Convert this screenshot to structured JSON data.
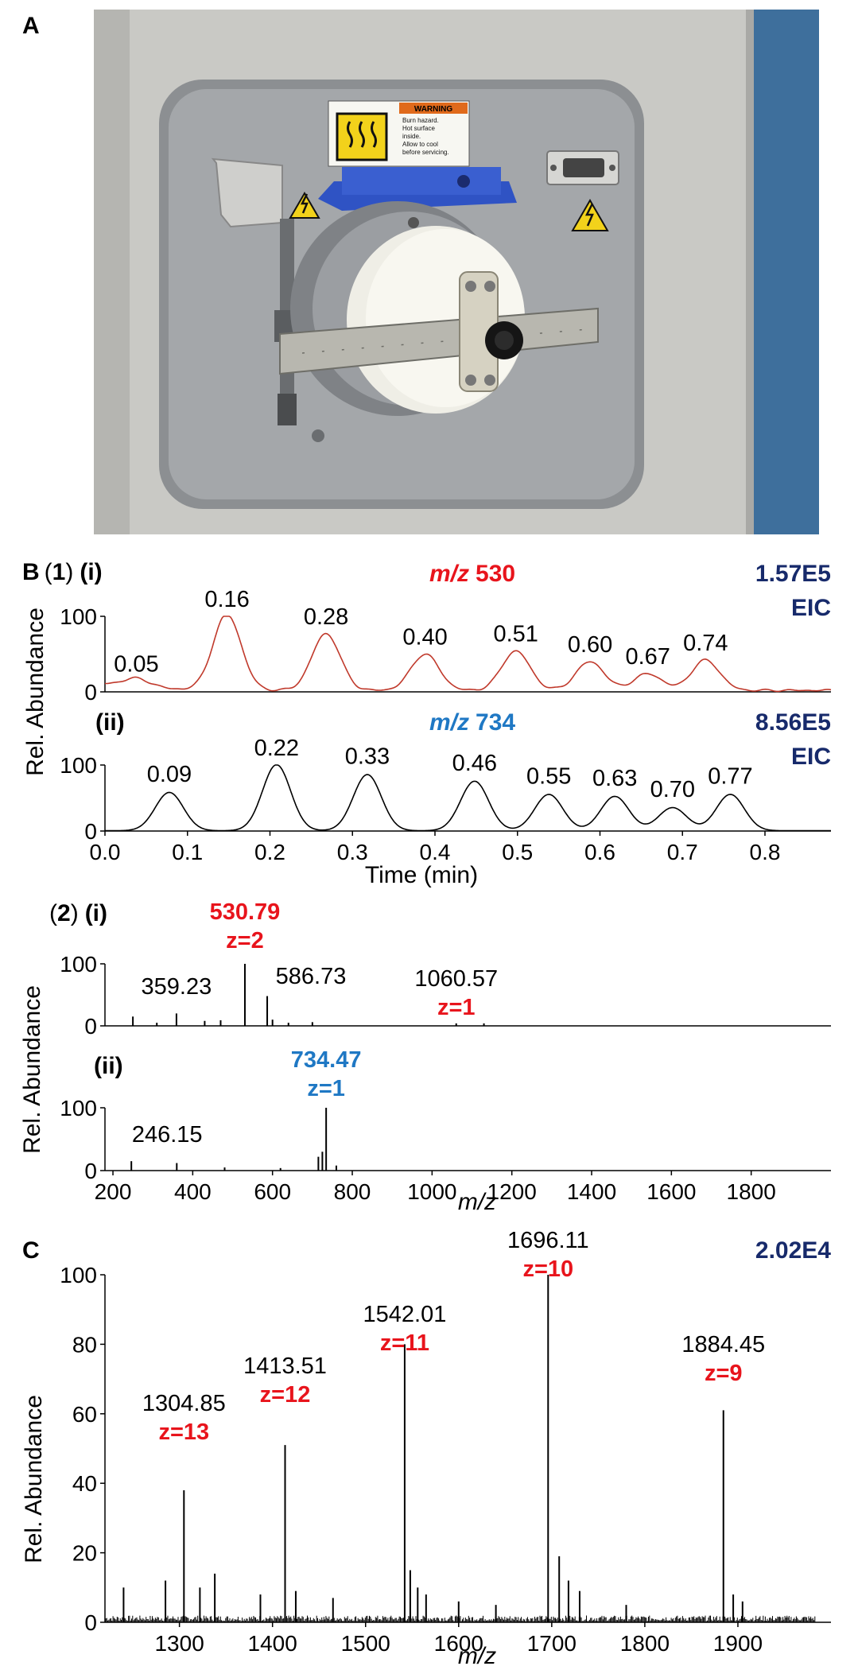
{
  "panels": {
    "A": "A",
    "B": "B",
    "C": "C"
  },
  "photo": {
    "warning_title": "WARNING",
    "warning_text": [
      "Burn hazard.",
      "Hot surface",
      "inside.",
      "Allow to cool",
      "before servicing."
    ]
  },
  "labels": {
    "rel_abundance": "Rel. Abundance",
    "time_axis": "Time (min)",
    "mz_axis": "m/z",
    "eic": "EIC",
    "sub_1_num": "1",
    "sub_2_num": "2",
    "roman_i": "(i)",
    "roman_ii": "(ii)",
    "open_paren": "(",
    "close_paren": ")",
    "mz_italic": "m/z"
  },
  "colors": {
    "red": "#e8141c",
    "blue": "#1f78c4",
    "navy": "#172a6b",
    "trace_red": "#c0392b"
  },
  "chart_data": [
    {
      "type": "line",
      "id": "B1i",
      "title_prefix": "m/z",
      "title_value": "530",
      "intensity": "1.57E5",
      "mode": "EIC",
      "xlim": [
        0,
        0.88
      ],
      "ylim": [
        0,
        100
      ],
      "y_ticks": [
        "100",
        "0"
      ],
      "peaks": [
        {
          "x": 0.05,
          "y": 12,
          "label": "0.05"
        },
        {
          "x": 0.16,
          "y": 100,
          "label": "0.16"
        },
        {
          "x": 0.28,
          "y": 75,
          "label": "0.28"
        },
        {
          "x": 0.4,
          "y": 48,
          "label": "0.40"
        },
        {
          "x": 0.51,
          "y": 52,
          "label": "0.51"
        },
        {
          "x": 0.6,
          "y": 38,
          "label": "0.60"
        },
        {
          "x": 0.67,
          "y": 22,
          "label": "0.67"
        },
        {
          "x": 0.74,
          "y": 40,
          "label": "0.74"
        }
      ]
    },
    {
      "type": "line",
      "id": "B1ii",
      "title_prefix": "m/z",
      "title_value": "734",
      "intensity": "8.56E5",
      "mode": "EIC",
      "xlim": [
        0,
        0.88
      ],
      "ylim": [
        0,
        100
      ],
      "y_ticks": [
        "100",
        "0"
      ],
      "x_ticks": [
        "0.0",
        "0.1",
        "0.2",
        "0.3",
        "0.4",
        "0.5",
        "0.6",
        "0.7",
        "0.8"
      ],
      "xlabel": "Time (min)",
      "peaks": [
        {
          "x": 0.09,
          "y": 58,
          "label": "0.09"
        },
        {
          "x": 0.22,
          "y": 100,
          "label": "0.22"
        },
        {
          "x": 0.33,
          "y": 85,
          "label": "0.33"
        },
        {
          "x": 0.46,
          "y": 75,
          "label": "0.46"
        },
        {
          "x": 0.55,
          "y": 55,
          "label": "0.55"
        },
        {
          "x": 0.63,
          "y": 52,
          "label": "0.63"
        },
        {
          "x": 0.7,
          "y": 35,
          "label": "0.70"
        },
        {
          "x": 0.77,
          "y": 55,
          "label": "0.77"
        }
      ]
    },
    {
      "type": "bar",
      "id": "B2i",
      "xlim": [
        180,
        2000
      ],
      "ylim": [
        0,
        100
      ],
      "y_ticks": [
        "100",
        "0"
      ],
      "sticks": [
        {
          "x": 359.23,
          "y": 20,
          "label": "359.23"
        },
        {
          "x": 530.79,
          "y": 100,
          "label": "530.79",
          "z": "z=2",
          "highlight": true
        },
        {
          "x": 586.73,
          "y": 48,
          "label": "586.73"
        },
        {
          "x": 1060.57,
          "y": 4,
          "label": "1060.57",
          "z": "z=1"
        },
        {
          "x": 250,
          "y": 15
        },
        {
          "x": 470,
          "y": 9
        },
        {
          "x": 600,
          "y": 10
        },
        {
          "x": 700,
          "y": 6
        },
        {
          "x": 310,
          "y": 5
        },
        {
          "x": 430,
          "y": 8
        },
        {
          "x": 640,
          "y": 5
        },
        {
          "x": 1130,
          "y": 4
        }
      ]
    },
    {
      "type": "bar",
      "id": "B2ii",
      "xlim": [
        180,
        2000
      ],
      "ylim": [
        0,
        100
      ],
      "y_ticks": [
        "100",
        "0"
      ],
      "x_ticks": [
        "200",
        "400",
        "600",
        "800",
        "1000",
        "1200",
        "1400",
        "1600",
        "1800"
      ],
      "xlabel": "m/z",
      "sticks": [
        {
          "x": 246.15,
          "y": 15,
          "label": "246.15"
        },
        {
          "x": 734.47,
          "y": 100,
          "label": "734.47",
          "z": "z=1",
          "highlight": true
        },
        {
          "x": 360,
          "y": 12
        },
        {
          "x": 715,
          "y": 22
        },
        {
          "x": 725,
          "y": 30
        },
        {
          "x": 480,
          "y": 5
        },
        {
          "x": 620,
          "y": 4
        },
        {
          "x": 760,
          "y": 8
        }
      ]
    },
    {
      "type": "bar",
      "id": "C",
      "intensity": "2.02E4",
      "xlim": [
        1220,
        2000
      ],
      "ylim": [
        0,
        100
      ],
      "y_ticks": [
        "100",
        "80",
        "60",
        "40",
        "20",
        "0"
      ],
      "x_ticks": [
        "1300",
        "1400",
        "1500",
        "1600",
        "1700",
        "1800",
        "1900"
      ],
      "xlabel": "m/z",
      "ylabel": "Rel. Abundance",
      "sticks": [
        {
          "x": 1304.85,
          "y": 38,
          "label": "1304.85",
          "z": "z=13"
        },
        {
          "x": 1413.51,
          "y": 51,
          "label": "1413.51",
          "z": "z=12"
        },
        {
          "x": 1542.01,
          "y": 80,
          "label": "1542.01",
          "z": "z=11"
        },
        {
          "x": 1696.11,
          "y": 100,
          "label": "1696.11",
          "z": "z=10"
        },
        {
          "x": 1884.45,
          "y": 61,
          "label": "1884.45",
          "z": "z=9"
        },
        {
          "x": 1240,
          "y": 10
        },
        {
          "x": 1285,
          "y": 12
        },
        {
          "x": 1322,
          "y": 10
        },
        {
          "x": 1338,
          "y": 14
        },
        {
          "x": 1387,
          "y": 8
        },
        {
          "x": 1425,
          "y": 9
        },
        {
          "x": 1465,
          "y": 7
        },
        {
          "x": 1548,
          "y": 15
        },
        {
          "x": 1556,
          "y": 10
        },
        {
          "x": 1565,
          "y": 8
        },
        {
          "x": 1708,
          "y": 19
        },
        {
          "x": 1718,
          "y": 12
        },
        {
          "x": 1730,
          "y": 9
        },
        {
          "x": 1895,
          "y": 8
        },
        {
          "x": 1905,
          "y": 6
        },
        {
          "x": 1600,
          "y": 6
        },
        {
          "x": 1640,
          "y": 5
        },
        {
          "x": 1780,
          "y": 5
        }
      ]
    }
  ]
}
